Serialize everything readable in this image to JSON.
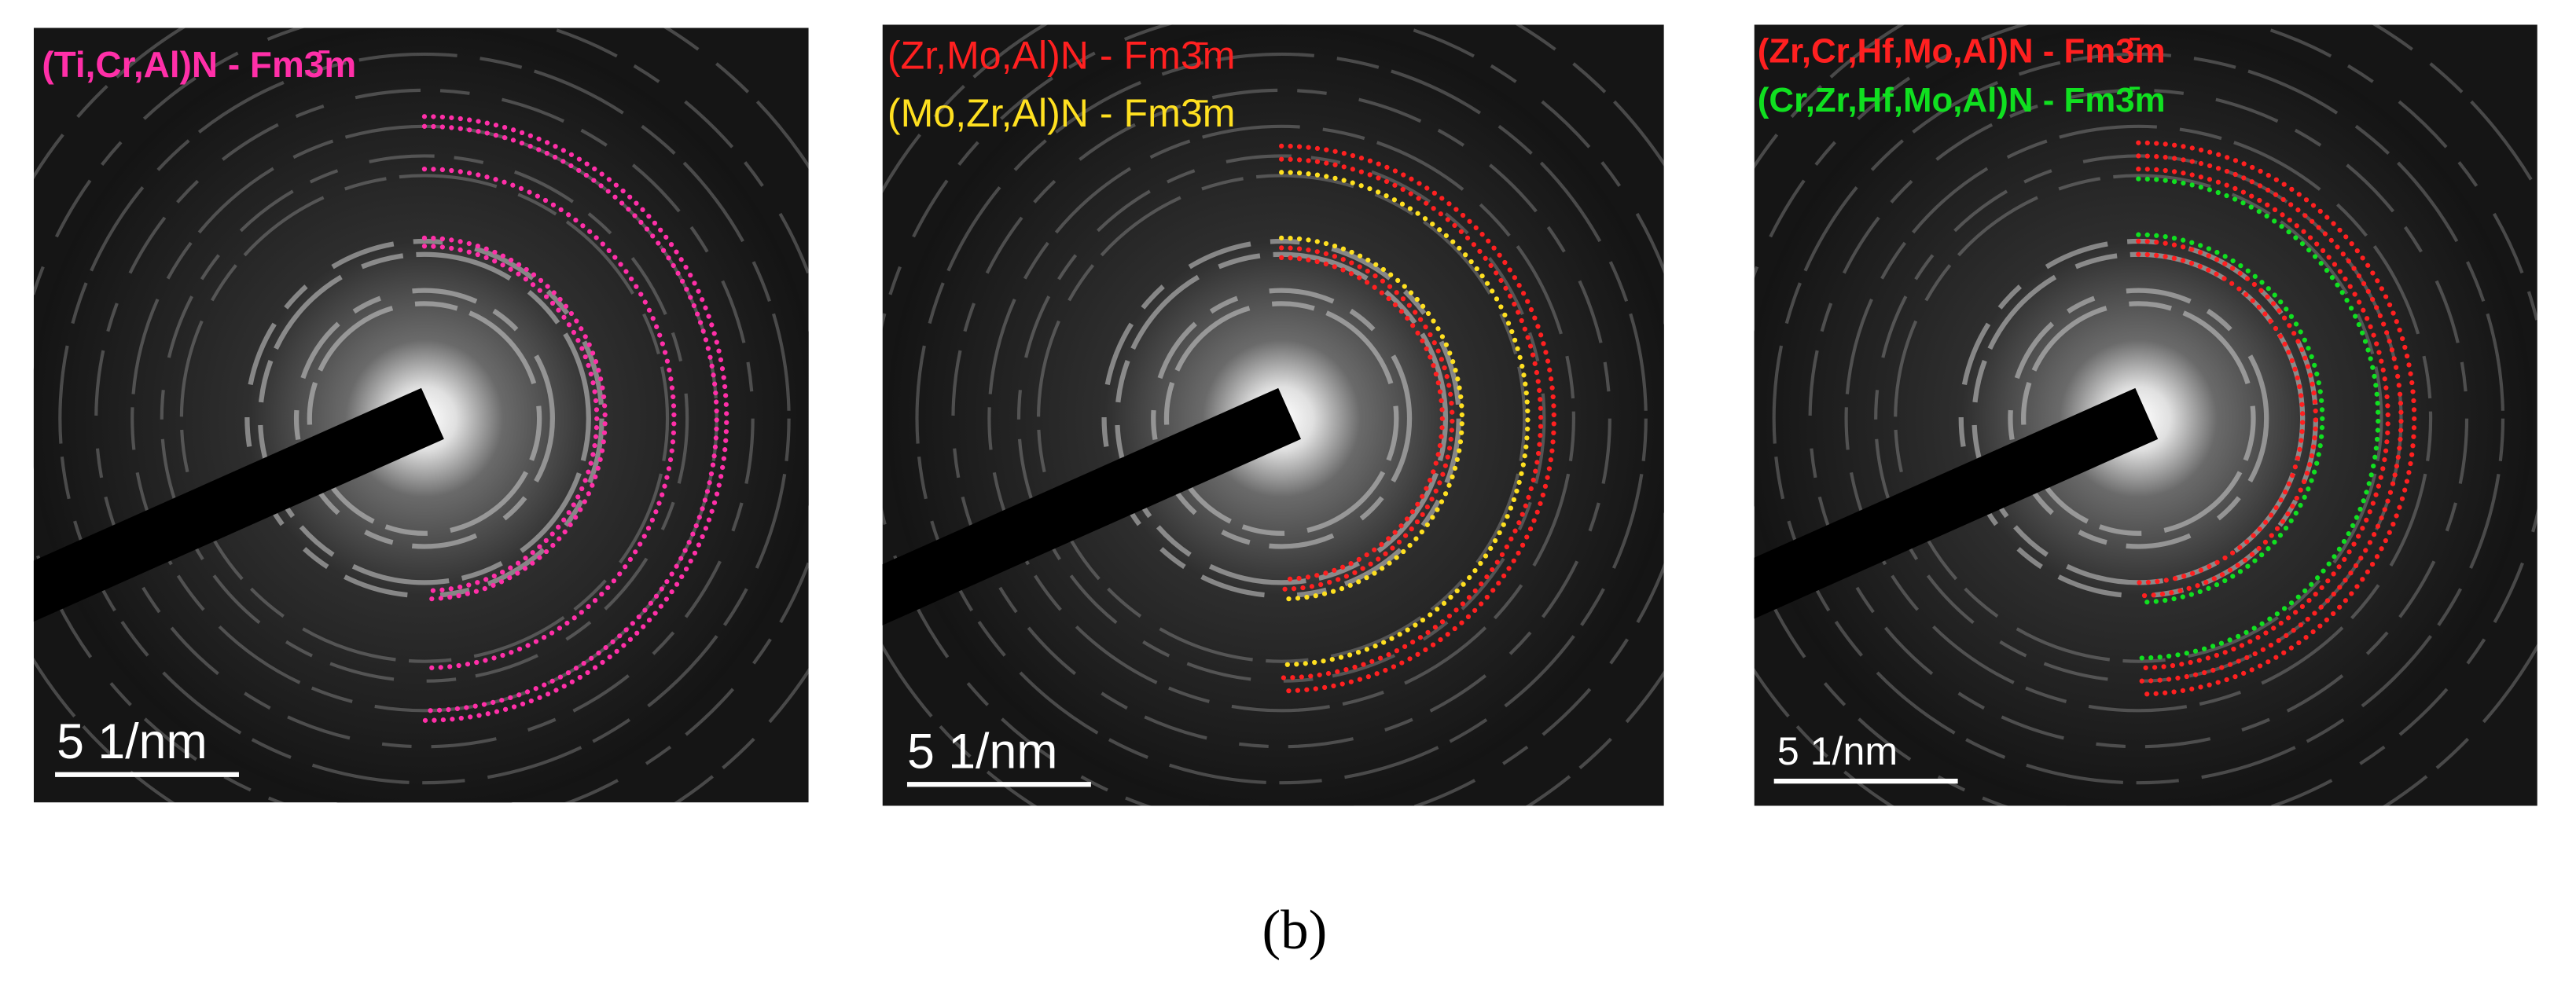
{
  "panels": [
    {
      "labels": [
        "(Ti,Cr,Al)N - Fm3̄m"
      ],
      "scale_bar": "5 1/nm"
    },
    {
      "labels": [
        "(Zr,Mo,Al)N - Fm3̄m",
        "(Mo,Zr,Al)N - Fm3̄m"
      ],
      "scale_bar": "5 1/nm"
    },
    {
      "labels": [
        "(Zr,Cr,Hf,Mo,Al)N - Fm3̄m",
        "(Cr,Zr,Hf,Mo,Al)N - Fm3̄m"
      ],
      "scale_bar": "5 1/nm"
    }
  ],
  "caption": "(b)"
}
